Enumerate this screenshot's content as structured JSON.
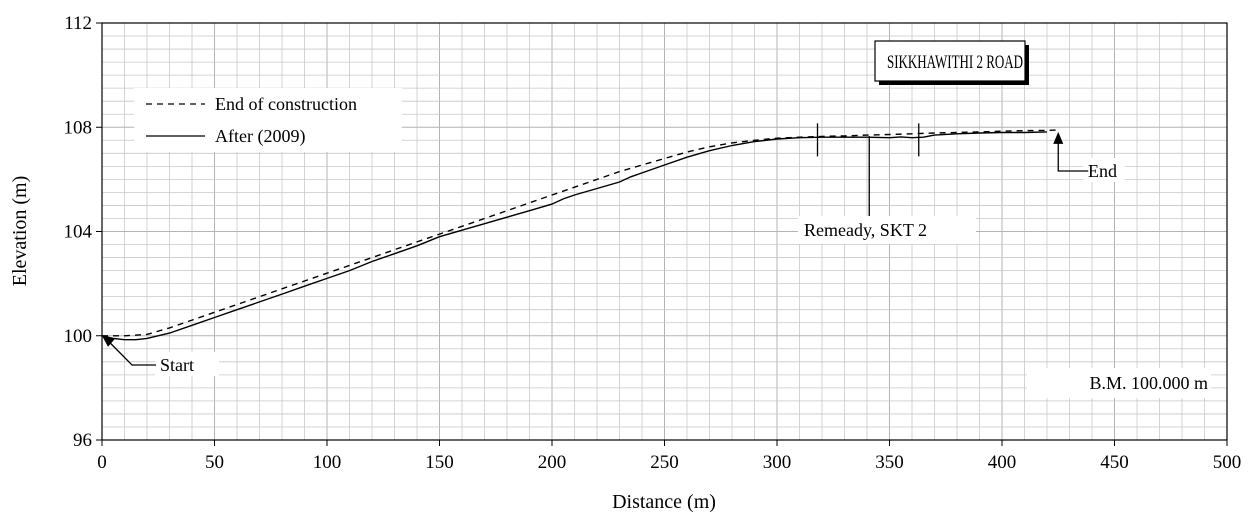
{
  "chart_data": {
    "type": "line",
    "title": "SIKKHAWITHI 2 ROAD",
    "xlabel": "Distance (m)",
    "ylabel": "Elevation (m)",
    "xlim": [
      0,
      500
    ],
    "ylim": [
      96,
      112
    ],
    "x_ticks": [
      0,
      50,
      100,
      150,
      200,
      250,
      300,
      350,
      400,
      450,
      500
    ],
    "y_ticks": [
      96,
      100,
      104,
      108,
      112
    ],
    "grid": true,
    "legend_position": "top-left",
    "series": [
      {
        "name": "End of construction",
        "style": "dashed",
        "x": [
          0,
          10,
          20,
          30,
          40,
          50,
          60,
          70,
          80,
          90,
          100,
          110,
          120,
          130,
          140,
          150,
          160,
          170,
          180,
          190,
          200,
          210,
          220,
          230,
          240,
          250,
          260,
          270,
          280,
          290,
          300,
          310,
          320,
          330,
          340,
          350,
          360,
          370,
          380,
          390,
          400,
          410,
          420,
          425
        ],
        "y": [
          100.0,
          100.0,
          100.05,
          100.3,
          100.6,
          100.9,
          101.2,
          101.5,
          101.8,
          102.1,
          102.4,
          102.7,
          103.0,
          103.3,
          103.6,
          103.9,
          104.2,
          104.5,
          104.8,
          105.1,
          105.4,
          105.7,
          106.0,
          106.3,
          106.55,
          106.8,
          107.05,
          107.25,
          107.4,
          107.5,
          107.58,
          107.62,
          107.65,
          107.67,
          107.7,
          107.72,
          107.75,
          107.78,
          107.8,
          107.82,
          107.85,
          107.87,
          107.88,
          107.9
        ]
      },
      {
        "name": "After (2009)",
        "style": "solid",
        "x": [
          0,
          5,
          10,
          15,
          20,
          30,
          40,
          50,
          60,
          70,
          80,
          90,
          100,
          110,
          120,
          130,
          140,
          150,
          160,
          170,
          180,
          190,
          200,
          205,
          210,
          220,
          230,
          235,
          240,
          250,
          260,
          270,
          280,
          290,
          300,
          310,
          320,
          330,
          340,
          350,
          355,
          360,
          365,
          370,
          380,
          390,
          400,
          410,
          420
        ],
        "y": [
          100.0,
          99.9,
          99.85,
          99.85,
          99.9,
          100.1,
          100.4,
          100.7,
          101.0,
          101.3,
          101.6,
          101.9,
          102.2,
          102.5,
          102.85,
          103.15,
          103.45,
          103.8,
          104.05,
          104.3,
          104.55,
          104.8,
          105.05,
          105.25,
          105.4,
          105.65,
          105.9,
          106.1,
          106.25,
          106.55,
          106.85,
          107.1,
          107.3,
          107.45,
          107.55,
          107.6,
          107.62,
          107.62,
          107.62,
          107.6,
          107.63,
          107.6,
          107.62,
          107.7,
          107.75,
          107.78,
          107.8,
          107.8,
          107.82
        ]
      }
    ],
    "annotations": [
      {
        "label": "Start",
        "at_x": 0,
        "at_y": 100
      },
      {
        "label": "End",
        "at_x": 425,
        "at_y": 107.9
      },
      {
        "label": "Remeady, SKT 2",
        "markers_x": [
          318,
          363
        ],
        "pointer_x": 341
      },
      {
        "label": "B.M. 100.000 m"
      }
    ]
  },
  "legend": {
    "dashed_label": "End of construction",
    "solid_label": "After (2009)"
  },
  "title_box": "SIKKHAWITHI 2 ROAD",
  "labels": {
    "start": "Start",
    "end": "End",
    "remedy": "Remeady, SKT 2",
    "benchmark": "B.M. 100.000 m"
  }
}
